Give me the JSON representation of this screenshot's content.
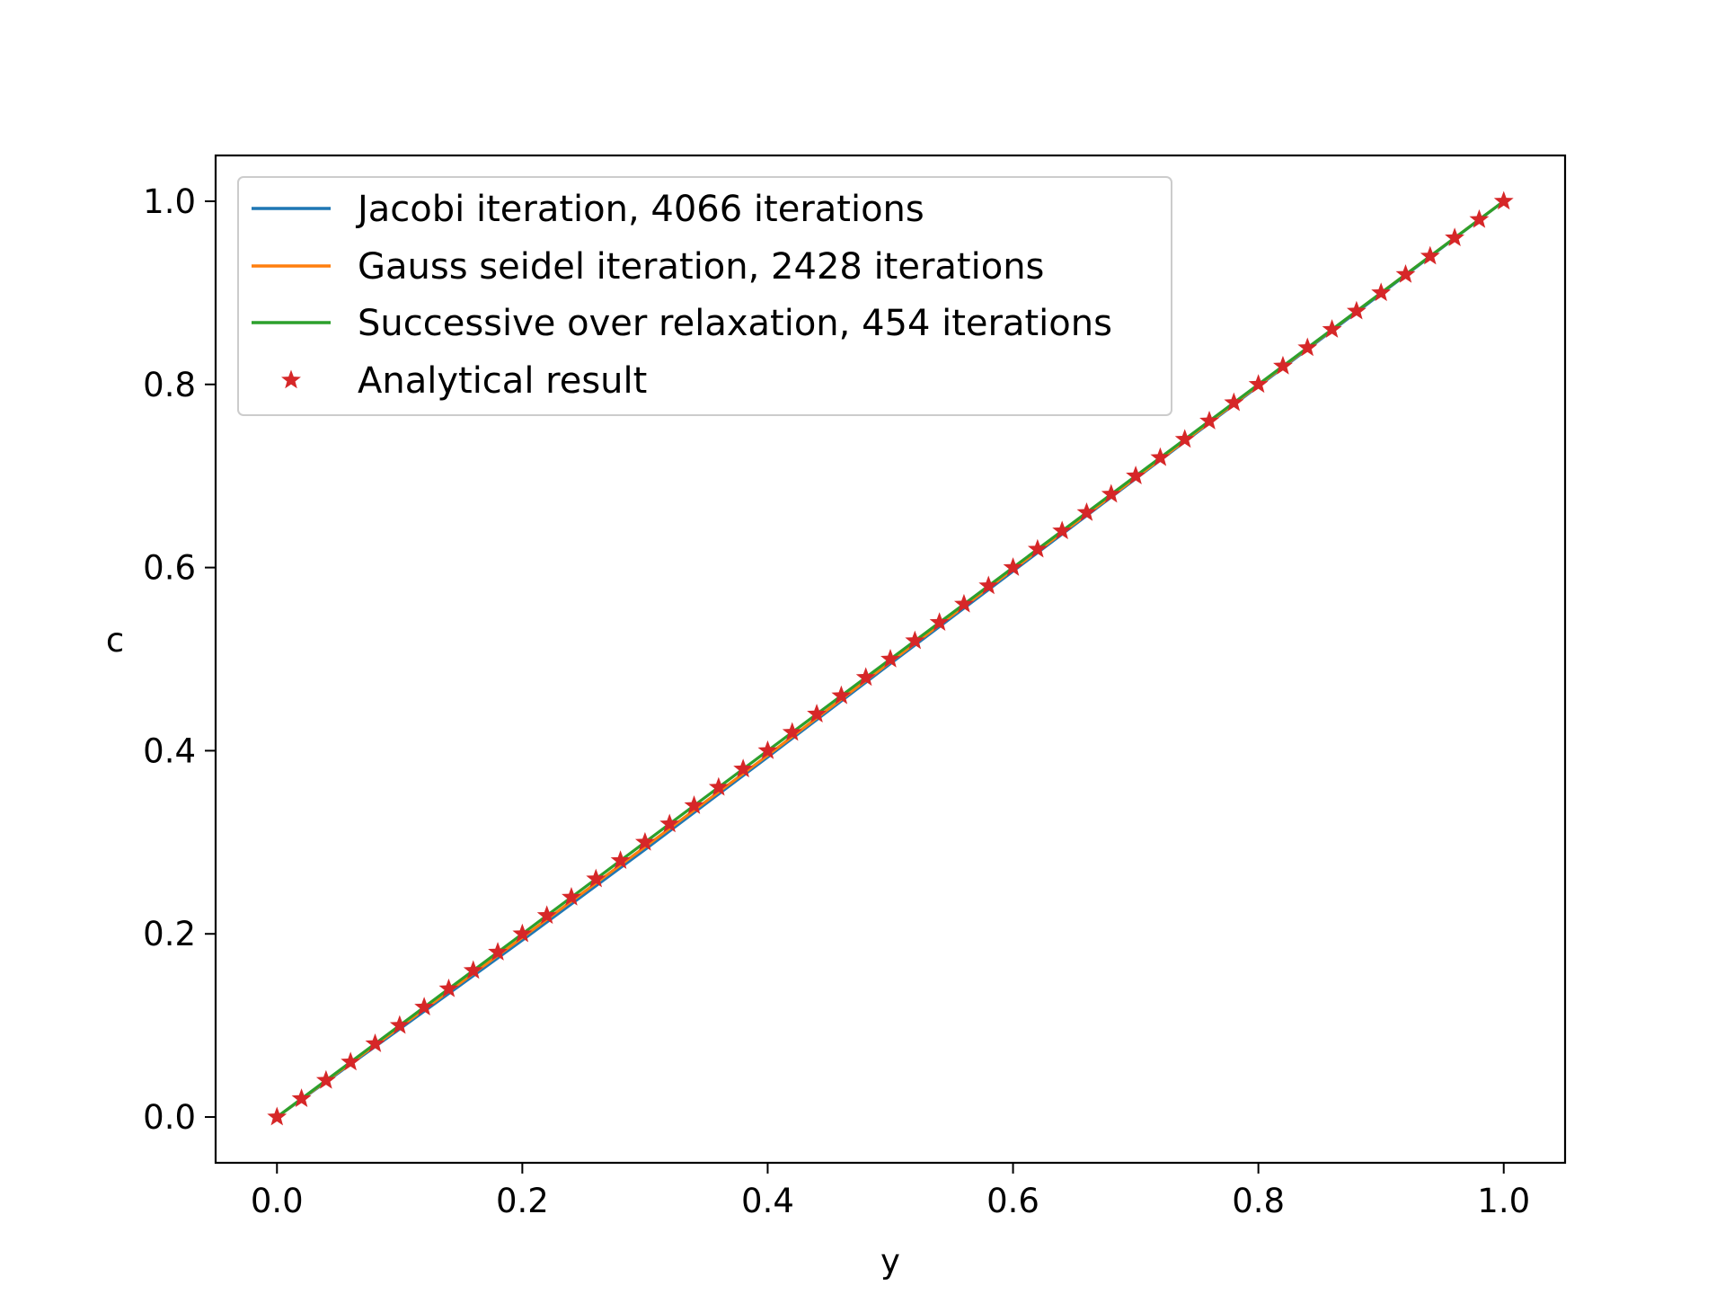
{
  "chart_data": {
    "type": "line",
    "title": "",
    "xlabel": "y",
    "ylabel": "c",
    "xlim": [
      -0.05,
      1.05
    ],
    "ylim": [
      -0.05,
      1.05
    ],
    "xticks": [
      "0.0",
      "0.2",
      "0.4",
      "0.6",
      "0.8",
      "1.0"
    ],
    "yticks": [
      "0.0",
      "0.2",
      "0.4",
      "0.6",
      "0.8",
      "1.0"
    ],
    "grid": false,
    "legend_position": "upper-left",
    "series": [
      {
        "name": "Jacobi iteration, 4066 iterations",
        "style": "line",
        "color": "#1f77b4",
        "x": [
          0.0,
          0.1,
          0.2,
          0.3,
          0.4,
          0.5,
          0.6,
          0.7,
          0.8,
          0.9,
          1.0
        ],
        "y": [
          0.0,
          0.096,
          0.193,
          0.292,
          0.393,
          0.495,
          0.596,
          0.697,
          0.798,
          0.899,
          1.0
        ]
      },
      {
        "name": "Gauss seidel iteration, 2428 iterations",
        "style": "line",
        "color": "#ff7f0e",
        "x": [
          0.0,
          0.1,
          0.2,
          0.3,
          0.4,
          0.5,
          0.6,
          0.7,
          0.8,
          0.9,
          1.0
        ],
        "y": [
          0.0,
          0.098,
          0.196,
          0.295,
          0.395,
          0.497,
          0.598,
          0.698,
          0.799,
          0.9,
          1.0
        ]
      },
      {
        "name": "Successive over relaxation, 454 iterations",
        "style": "line",
        "color": "#2ca02c",
        "x": [
          0.0,
          0.1,
          0.2,
          0.3,
          0.4,
          0.5,
          0.6,
          0.7,
          0.8,
          0.9,
          1.0
        ],
        "y": [
          0.0,
          0.1,
          0.2,
          0.3,
          0.4,
          0.5,
          0.6,
          0.7,
          0.8,
          0.9,
          1.0
        ]
      },
      {
        "name": "Analytical result",
        "style": "star-markers",
        "color": "#d62728",
        "x": [
          0.0,
          0.02,
          0.04,
          0.06,
          0.08,
          0.1,
          0.12,
          0.14,
          0.16,
          0.18,
          0.2,
          0.22,
          0.24,
          0.26,
          0.28,
          0.3,
          0.32,
          0.34,
          0.36,
          0.38,
          0.4,
          0.42,
          0.44,
          0.46,
          0.48,
          0.5,
          0.52,
          0.54,
          0.56,
          0.58,
          0.6,
          0.62,
          0.64,
          0.66,
          0.68,
          0.7,
          0.72,
          0.74,
          0.76,
          0.78,
          0.8,
          0.82,
          0.84,
          0.86,
          0.88,
          0.9,
          0.92,
          0.94,
          0.96,
          0.98,
          1.0
        ],
        "y": [
          0.0,
          0.02,
          0.04,
          0.06,
          0.08,
          0.1,
          0.12,
          0.14,
          0.16,
          0.18,
          0.2,
          0.22,
          0.24,
          0.26,
          0.28,
          0.3,
          0.32,
          0.34,
          0.36,
          0.38,
          0.4,
          0.42,
          0.44,
          0.46,
          0.48,
          0.5,
          0.52,
          0.54,
          0.56,
          0.58,
          0.6,
          0.62,
          0.64,
          0.66,
          0.68,
          0.7,
          0.72,
          0.74,
          0.76,
          0.78,
          0.8,
          0.82,
          0.84,
          0.86,
          0.88,
          0.9,
          0.92,
          0.94,
          0.96,
          0.98,
          1.0
        ]
      }
    ]
  }
}
